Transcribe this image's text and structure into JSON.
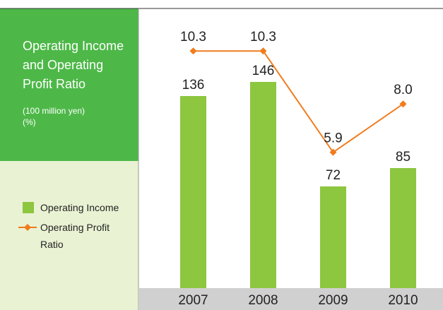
{
  "chart_data": {
    "type": "bar",
    "title": "Operating Income and Operating Profit Ratio",
    "units": [
      "(100 million yen)",
      "(%)"
    ],
    "categories": [
      "2007",
      "2008",
      "2009",
      "2010"
    ],
    "series": [
      {
        "name": "Operating Income",
        "type": "bar",
        "color": "#8dc63f",
        "values": [
          136,
          146,
          72,
          85
        ]
      },
      {
        "name": "Operating Profit Ratio",
        "type": "line",
        "color": "#f07c1e",
        "values": [
          10.3,
          10.3,
          5.9,
          8.0
        ],
        "value_labels": [
          "10.3",
          "10.3",
          "5.9",
          "8.0"
        ]
      }
    ]
  }
}
